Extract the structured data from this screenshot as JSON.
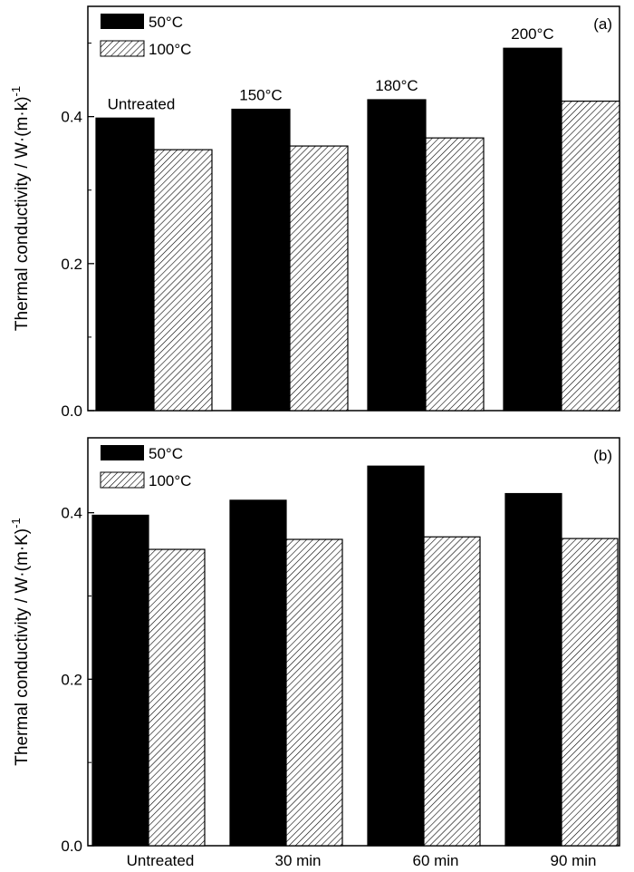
{
  "chart_data": [
    {
      "panel_label": "(a)",
      "type": "bar",
      "ylabel": "Thermal conductivity / W·(m·k)",
      "ylabel_sup": "-1",
      "ylim": [
        0,
        0.55
      ],
      "yticks": [
        "0.0",
        "0.2",
        "0.4"
      ],
      "ytick_values": [
        0,
        0.2,
        0.4
      ],
      "group_labels": [
        "Untreated",
        "150°C",
        "180°C",
        "200°C"
      ],
      "series": [
        {
          "name": "50°C",
          "color": "#000000",
          "fill": "solid",
          "values": [
            0.398,
            0.41,
            0.423,
            0.493
          ]
        },
        {
          "name": "100°C",
          "color": "#ffffff",
          "fill": "hatch",
          "values": [
            0.355,
            0.36,
            0.371,
            0.421
          ]
        }
      ],
      "legend_position": "top-left"
    },
    {
      "panel_label": "(b)",
      "type": "bar",
      "ylabel": "Thermal conductivity / W·(m·K)",
      "ylabel_sup": "-1",
      "ylim": [
        0,
        0.49
      ],
      "yticks": [
        "0.0",
        "0.2",
        "0.4"
      ],
      "ytick_values": [
        0,
        0.2,
        0.4
      ],
      "categories": [
        "Untreated",
        "30 min",
        "60 min",
        "90 min"
      ],
      "series": [
        {
          "name": "50°C",
          "color": "#000000",
          "fill": "solid",
          "values": [
            0.397,
            0.415,
            0.456,
            0.423
          ]
        },
        {
          "name": "100°C",
          "color": "#ffffff",
          "fill": "hatch",
          "values": [
            0.356,
            0.368,
            0.371,
            0.369
          ]
        }
      ],
      "legend_position": "top-left"
    }
  ]
}
